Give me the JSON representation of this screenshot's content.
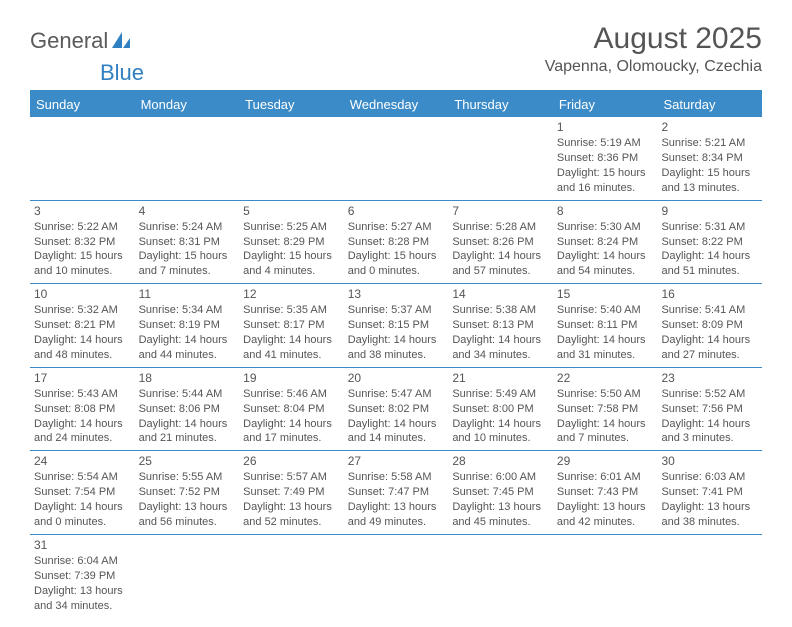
{
  "logo": {
    "text1": "General",
    "text2": "Blue"
  },
  "title": "August 2025",
  "location": "Vapenna, Olomoucky, Czechia",
  "colors": {
    "accent": "#3b8bc9",
    "text": "#555555",
    "bg": "#ffffff"
  },
  "day_names": [
    "Sunday",
    "Monday",
    "Tuesday",
    "Wednesday",
    "Thursday",
    "Friday",
    "Saturday"
  ],
  "weeks": [
    [
      null,
      null,
      null,
      null,
      null,
      {
        "n": "1",
        "sr": "Sunrise: 5:19 AM",
        "ss": "Sunset: 8:36 PM",
        "d1": "Daylight: 15 hours",
        "d2": "and 16 minutes."
      },
      {
        "n": "2",
        "sr": "Sunrise: 5:21 AM",
        "ss": "Sunset: 8:34 PM",
        "d1": "Daylight: 15 hours",
        "d2": "and 13 minutes."
      }
    ],
    [
      {
        "n": "3",
        "sr": "Sunrise: 5:22 AM",
        "ss": "Sunset: 8:32 PM",
        "d1": "Daylight: 15 hours",
        "d2": "and 10 minutes."
      },
      {
        "n": "4",
        "sr": "Sunrise: 5:24 AM",
        "ss": "Sunset: 8:31 PM",
        "d1": "Daylight: 15 hours",
        "d2": "and 7 minutes."
      },
      {
        "n": "5",
        "sr": "Sunrise: 5:25 AM",
        "ss": "Sunset: 8:29 PM",
        "d1": "Daylight: 15 hours",
        "d2": "and 4 minutes."
      },
      {
        "n": "6",
        "sr": "Sunrise: 5:27 AM",
        "ss": "Sunset: 8:28 PM",
        "d1": "Daylight: 15 hours",
        "d2": "and 0 minutes."
      },
      {
        "n": "7",
        "sr": "Sunrise: 5:28 AM",
        "ss": "Sunset: 8:26 PM",
        "d1": "Daylight: 14 hours",
        "d2": "and 57 minutes."
      },
      {
        "n": "8",
        "sr": "Sunrise: 5:30 AM",
        "ss": "Sunset: 8:24 PM",
        "d1": "Daylight: 14 hours",
        "d2": "and 54 minutes."
      },
      {
        "n": "9",
        "sr": "Sunrise: 5:31 AM",
        "ss": "Sunset: 8:22 PM",
        "d1": "Daylight: 14 hours",
        "d2": "and 51 minutes."
      }
    ],
    [
      {
        "n": "10",
        "sr": "Sunrise: 5:32 AM",
        "ss": "Sunset: 8:21 PM",
        "d1": "Daylight: 14 hours",
        "d2": "and 48 minutes."
      },
      {
        "n": "11",
        "sr": "Sunrise: 5:34 AM",
        "ss": "Sunset: 8:19 PM",
        "d1": "Daylight: 14 hours",
        "d2": "and 44 minutes."
      },
      {
        "n": "12",
        "sr": "Sunrise: 5:35 AM",
        "ss": "Sunset: 8:17 PM",
        "d1": "Daylight: 14 hours",
        "d2": "and 41 minutes."
      },
      {
        "n": "13",
        "sr": "Sunrise: 5:37 AM",
        "ss": "Sunset: 8:15 PM",
        "d1": "Daylight: 14 hours",
        "d2": "and 38 minutes."
      },
      {
        "n": "14",
        "sr": "Sunrise: 5:38 AM",
        "ss": "Sunset: 8:13 PM",
        "d1": "Daylight: 14 hours",
        "d2": "and 34 minutes."
      },
      {
        "n": "15",
        "sr": "Sunrise: 5:40 AM",
        "ss": "Sunset: 8:11 PM",
        "d1": "Daylight: 14 hours",
        "d2": "and 31 minutes."
      },
      {
        "n": "16",
        "sr": "Sunrise: 5:41 AM",
        "ss": "Sunset: 8:09 PM",
        "d1": "Daylight: 14 hours",
        "d2": "and 27 minutes."
      }
    ],
    [
      {
        "n": "17",
        "sr": "Sunrise: 5:43 AM",
        "ss": "Sunset: 8:08 PM",
        "d1": "Daylight: 14 hours",
        "d2": "and 24 minutes."
      },
      {
        "n": "18",
        "sr": "Sunrise: 5:44 AM",
        "ss": "Sunset: 8:06 PM",
        "d1": "Daylight: 14 hours",
        "d2": "and 21 minutes."
      },
      {
        "n": "19",
        "sr": "Sunrise: 5:46 AM",
        "ss": "Sunset: 8:04 PM",
        "d1": "Daylight: 14 hours",
        "d2": "and 17 minutes."
      },
      {
        "n": "20",
        "sr": "Sunrise: 5:47 AM",
        "ss": "Sunset: 8:02 PM",
        "d1": "Daylight: 14 hours",
        "d2": "and 14 minutes."
      },
      {
        "n": "21",
        "sr": "Sunrise: 5:49 AM",
        "ss": "Sunset: 8:00 PM",
        "d1": "Daylight: 14 hours",
        "d2": "and 10 minutes."
      },
      {
        "n": "22",
        "sr": "Sunrise: 5:50 AM",
        "ss": "Sunset: 7:58 PM",
        "d1": "Daylight: 14 hours",
        "d2": "and 7 minutes."
      },
      {
        "n": "23",
        "sr": "Sunrise: 5:52 AM",
        "ss": "Sunset: 7:56 PM",
        "d1": "Daylight: 14 hours",
        "d2": "and 3 minutes."
      }
    ],
    [
      {
        "n": "24",
        "sr": "Sunrise: 5:54 AM",
        "ss": "Sunset: 7:54 PM",
        "d1": "Daylight: 14 hours",
        "d2": "and 0 minutes."
      },
      {
        "n": "25",
        "sr": "Sunrise: 5:55 AM",
        "ss": "Sunset: 7:52 PM",
        "d1": "Daylight: 13 hours",
        "d2": "and 56 minutes."
      },
      {
        "n": "26",
        "sr": "Sunrise: 5:57 AM",
        "ss": "Sunset: 7:49 PM",
        "d1": "Daylight: 13 hours",
        "d2": "and 52 minutes."
      },
      {
        "n": "27",
        "sr": "Sunrise: 5:58 AM",
        "ss": "Sunset: 7:47 PM",
        "d1": "Daylight: 13 hours",
        "d2": "and 49 minutes."
      },
      {
        "n": "28",
        "sr": "Sunrise: 6:00 AM",
        "ss": "Sunset: 7:45 PM",
        "d1": "Daylight: 13 hours",
        "d2": "and 45 minutes."
      },
      {
        "n": "29",
        "sr": "Sunrise: 6:01 AM",
        "ss": "Sunset: 7:43 PM",
        "d1": "Daylight: 13 hours",
        "d2": "and 42 minutes."
      },
      {
        "n": "30",
        "sr": "Sunrise: 6:03 AM",
        "ss": "Sunset: 7:41 PM",
        "d1": "Daylight: 13 hours",
        "d2": "and 38 minutes."
      }
    ],
    [
      {
        "n": "31",
        "sr": "Sunrise: 6:04 AM",
        "ss": "Sunset: 7:39 PM",
        "d1": "Daylight: 13 hours",
        "d2": "and 34 minutes."
      },
      null,
      null,
      null,
      null,
      null,
      null
    ]
  ]
}
